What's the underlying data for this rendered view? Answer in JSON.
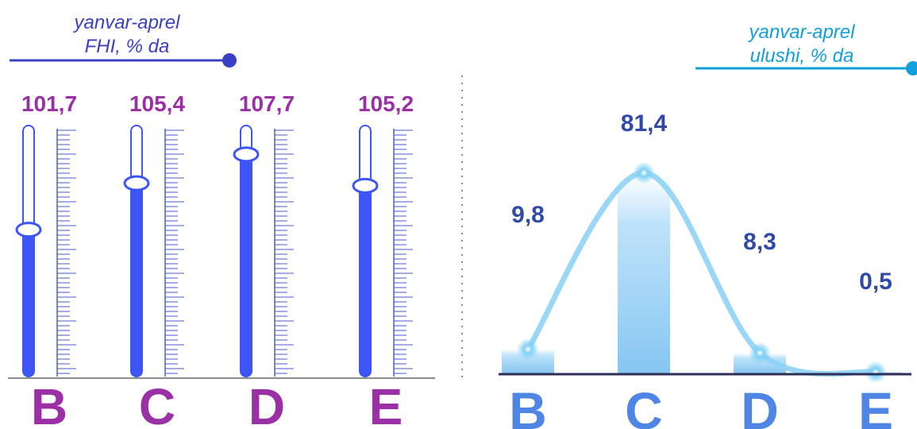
{
  "left_panel": {
    "title_line1": "yanvar-aprel",
    "title_line2": "FHI, % da"
  },
  "right_panel": {
    "title_line1": "yanvar-aprel",
    "title_line2": "ulushi, % da"
  },
  "colors": {
    "left_title": "#3a3fc6",
    "left_value": "#9b2fa6",
    "left_category": "#9b2fa6",
    "left_bar": "#3d55f5",
    "left_tick": "#4a5bd0",
    "right_title": "#12a0dc",
    "right_value": "#2f4aa8",
    "right_category": "#4f86e6",
    "right_bar": "#8fcaf3",
    "right_line": "#8fd3f5"
  },
  "chart_data": [
    {
      "type": "bar",
      "title": "yanvar-aprel FHI, % da",
      "categories": [
        "B",
        "C",
        "D",
        "E"
      ],
      "values": [
        101.7,
        105.4,
        107.7,
        105.2
      ],
      "value_labels": [
        "101,7",
        "105,4",
        "107,7",
        "105,2"
      ],
      "ylim": [
        90,
        110
      ],
      "grid": false,
      "style": "slider-thermometer"
    },
    {
      "type": "bar",
      "title": "yanvar-aprel ulushi, % da",
      "categories": [
        "B",
        "C",
        "D",
        "E"
      ],
      "values": [
        9.8,
        81.4,
        8.3,
        0.5
      ],
      "value_labels": [
        "9,8",
        "81,4",
        "8,3",
        "0,5"
      ],
      "ylim": [
        0,
        100
      ],
      "grid": false,
      "overlay": "smooth-line"
    }
  ]
}
